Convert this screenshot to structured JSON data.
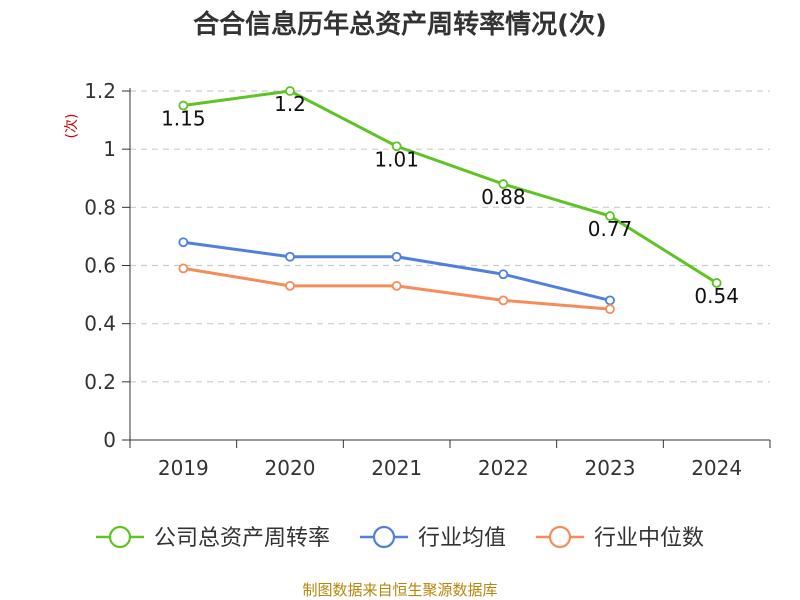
{
  "chart_data": {
    "type": "line",
    "title": "合合信息历年总资产周转率情况(次)",
    "ylabel": "(次)",
    "xlabel": "",
    "categories": [
      "2019",
      "2020",
      "2021",
      "2022",
      "2023",
      "2024"
    ],
    "ylim": [
      0,
      1.2
    ],
    "yticks": [
      0,
      0.2,
      0.4,
      0.6,
      0.8,
      1,
      1.2
    ],
    "ytick_labels": [
      "0",
      "0.2",
      "0.4",
      "0.6",
      "0.8",
      "1",
      "1.2"
    ],
    "grid": true,
    "legend_position": "bottom",
    "series": [
      {
        "name": "公司总资产周转率",
        "color": "#5ec423",
        "values": [
          1.15,
          1.2,
          1.01,
          0.88,
          0.77,
          0.54
        ],
        "labels": [
          "1.15",
          "1.2",
          "1.01",
          "0.88",
          "0.77",
          "0.54"
        ],
        "show_labels": true
      },
      {
        "name": "行业均值",
        "color": "#4f80de",
        "values": [
          0.68,
          0.63,
          0.63,
          0.57,
          0.48,
          null
        ],
        "show_labels": false
      },
      {
        "name": "行业中位数",
        "color": "#f58c5a",
        "values": [
          0.59,
          0.53,
          0.53,
          0.48,
          0.45,
          null
        ],
        "show_labels": false
      }
    ],
    "source": "制图数据来自恒生聚源数据库"
  }
}
